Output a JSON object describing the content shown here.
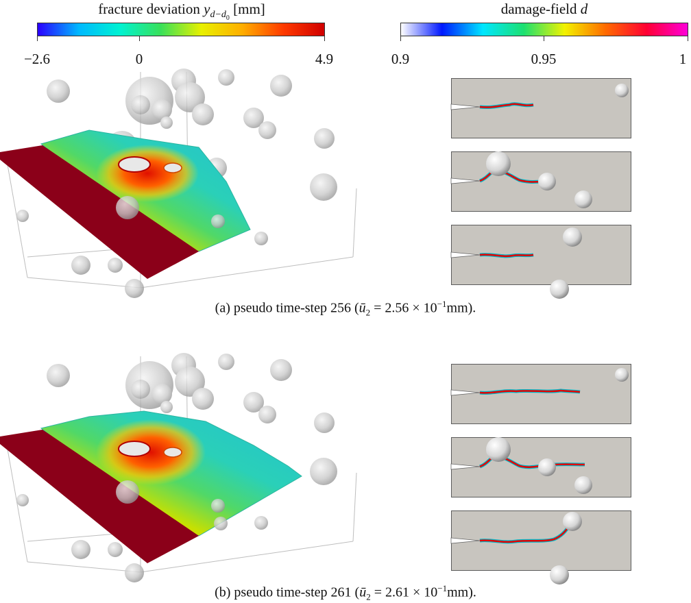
{
  "colorbars": [
    {
      "title_prefix": "fracture deviation",
      "title_var": "y",
      "title_sub": "d−d",
      "title_sub2": "0",
      "title_unit": "[mm]",
      "ticks": [
        "−2.6",
        "0",
        "4.9"
      ],
      "colors": [
        "#2a00ff",
        "#00b8ff",
        "#00f2d2",
        "#38e05a",
        "#e8f000",
        "#ffae00",
        "#ff3a00",
        "#d00000"
      ]
    },
    {
      "title_prefix": "damage-field",
      "title_var": "d",
      "ticks": [
        "0.9",
        "0.95",
        "1"
      ],
      "colors": [
        "#ffffff",
        "#0018ff",
        "#00e6ff",
        "#1ce070",
        "#f2f200",
        "#ff6a00",
        "#ff0033",
        "#ff00d8"
      ]
    }
  ],
  "captions": [
    {
      "label": "(a) pseudo time-step 256 (",
      "var": "ū",
      "sub": "2",
      "eq": " = 2.56 × 10",
      "exp": "−1",
      "unit": "mm)."
    },
    {
      "label": "(b) pseudo time-step 261 (",
      "var": "ū",
      "sub": "2",
      "eq": " = 2.61 × 10",
      "exp": "−1",
      "unit": "mm)."
    }
  ],
  "colors": {
    "plate": "#8b0019",
    "matrix": "#c8c5bf",
    "inclusion": "#c9c9c9"
  }
}
